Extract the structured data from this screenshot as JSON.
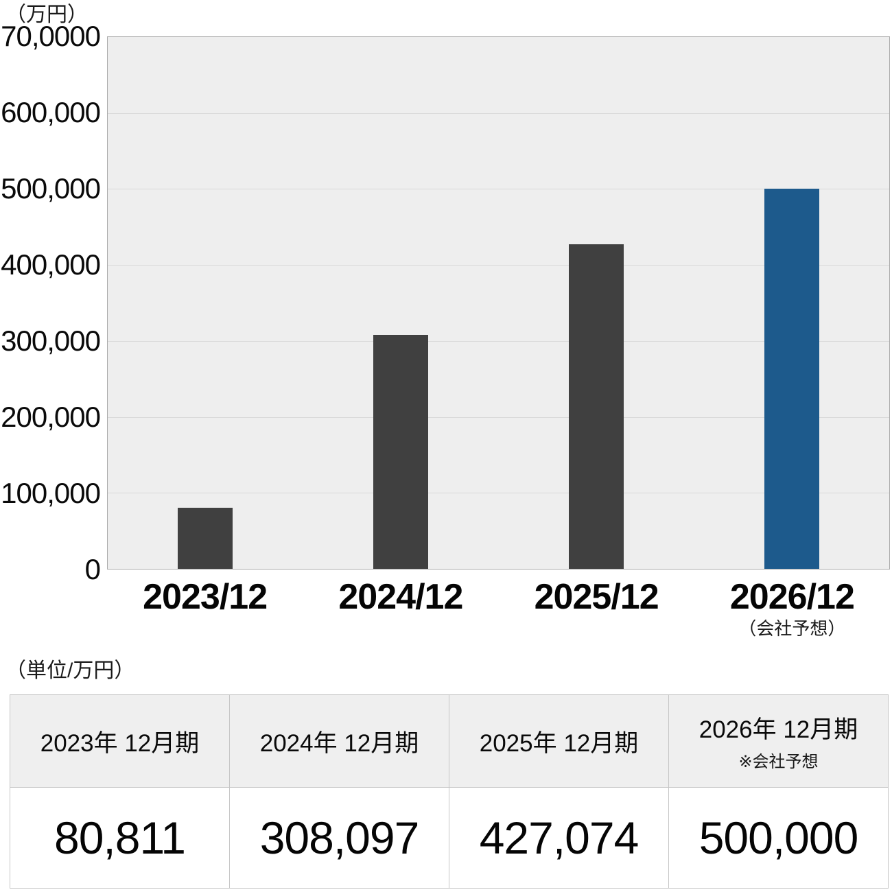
{
  "page": {
    "chart_unit_label": "（万円）",
    "table_unit_note": "（単位/万円）"
  },
  "chart_data": {
    "type": "bar",
    "title": "",
    "unit_label": "（万円）",
    "categories": [
      "2023/12",
      "2024/12",
      "2025/12",
      "2026/12"
    ],
    "last_category_note": "（会社予想）",
    "values": [
      80811,
      308097,
      427074,
      500000
    ],
    "ylim": [
      0,
      700000
    ],
    "y_tick_labels": [
      "70,0000",
      "600,000",
      "500,000",
      "400,000",
      "300,000",
      "200,000",
      "100,000",
      "0"
    ],
    "grid": "horizontal",
    "legend": "none",
    "bar_colors": [
      "#404040",
      "#404040",
      "#404040",
      "#1d5a8c"
    ]
  },
  "table": {
    "columns": [
      {
        "header": "2023年 12月期",
        "note": "",
        "value": "80,811"
      },
      {
        "header": "2024年 12月期",
        "note": "",
        "value": "308,097"
      },
      {
        "header": "2025年 12月期",
        "note": "",
        "value": "427,074"
      },
      {
        "header": "2026年 12月期",
        "note": "※会社予想",
        "value": "500,000"
      }
    ]
  },
  "colors": {
    "bar_default": "#404040",
    "bar_forecast": "#1d5a8c",
    "plot_background": "#eeeeee",
    "gridline": "#d9d9d9",
    "plot_border": "#ababab",
    "table_header_background": "#efefef",
    "table_border": "#c6c6c6"
  }
}
